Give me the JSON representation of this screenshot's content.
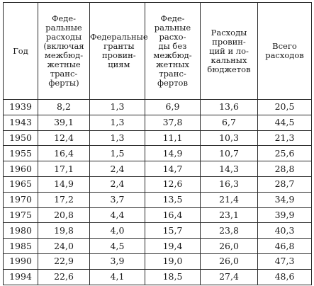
{
  "headers": [
    "Год",
    "Феде-\nральные\nрасходы\n(включая\nмежбюд-\nжетные\nтранс-\nферты)",
    "Федеральные\nгранты\nпровин-\nциям",
    "Феде-\nральные\nрасхо-\nды без\nмежбюд-\nжетных\nтранс-\nфертов",
    "Расходы\nпровин-\nций и ло-\nкальных\nбюджетов",
    "Всего\nрасходов"
  ],
  "rows": [
    [
      "1939",
      "8,2",
      "1,3",
      "6,9",
      "13,6",
      "20,5"
    ],
    [
      "1943",
      "39,1",
      "1,3",
      "37,8",
      "6,7",
      "44,5"
    ],
    [
      "1950",
      "12,4",
      "1,3",
      "11,1",
      "10,3",
      "21,3"
    ],
    [
      "1955",
      "16,4",
      "1,5",
      "14,9",
      "10,7",
      "25,6"
    ],
    [
      "1960",
      "17,1",
      "2,4",
      "14,7",
      "14,3",
      "28,8"
    ],
    [
      "1965",
      "14,9",
      "2,4",
      "12,6",
      "16,3",
      "28,7"
    ],
    [
      "1970",
      "17,2",
      "3,7",
      "13,5",
      "21,4",
      "34,9"
    ],
    [
      "1975",
      "20,8",
      "4,4",
      "16,4",
      "23,1",
      "39,9"
    ],
    [
      "1980",
      "19,8",
      "4,0",
      "15,7",
      "23,8",
      "40,3"
    ],
    [
      "1985",
      "24,0",
      "4,5",
      "19,4",
      "26,0",
      "46,8"
    ],
    [
      "1990",
      "22,9",
      "3,9",
      "19,0",
      "26,0",
      "47,3"
    ],
    [
      "1994",
      "22,6",
      "4,1",
      "18,5",
      "27,4",
      "48,6"
    ]
  ]
}
